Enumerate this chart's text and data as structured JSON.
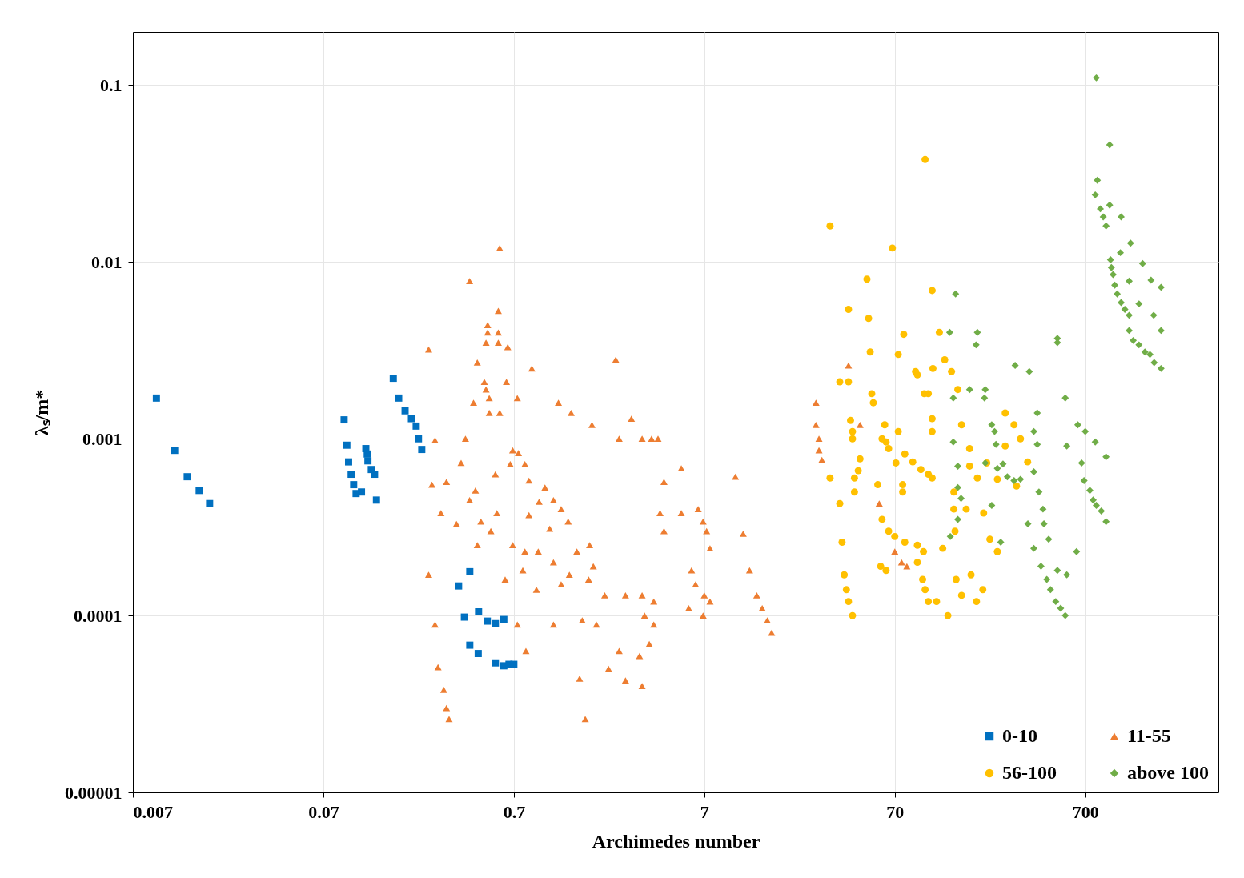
{
  "chart_data": {
    "type": "scatter",
    "xlabel": "Archimedes number",
    "ylabel": "λₛ/m*",
    "log": "xy",
    "xlim": [
      0.007,
      3500
    ],
    "ylim": [
      1e-05,
      0.2
    ],
    "xticks": [
      0.007,
      0.07,
      0.7,
      7,
      70,
      700
    ],
    "yticks": [
      {
        "value": 1e-05,
        "label": "0.00001"
      },
      0.0001,
      0.001,
      0.01,
      0.1
    ],
    "grid": true,
    "legend": "bottom right",
    "series": [
      {
        "name": "0-10",
        "color": "#0070c0",
        "marker": "square",
        "x": [
          0.0093,
          0.0116,
          0.0135,
          0.0156,
          0.0177,
          0.09,
          0.093,
          0.095,
          0.098,
          0.101,
          0.104,
          0.111,
          0.117,
          0.119,
          0.12,
          0.125,
          0.13,
          0.133,
          0.163,
          0.174,
          0.188,
          0.203,
          0.215,
          0.221,
          0.23,
          0.359,
          0.411,
          0.385,
          0.457,
          0.411,
          0.455,
          0.508,
          0.56,
          0.62,
          0.56,
          0.62,
          0.66,
          0.7
        ],
        "values": [
          0.0017,
          0.00086,
          0.00061,
          0.00051,
          0.00043,
          0.00128,
          0.00092,
          0.00074,
          0.00063,
          0.00055,
          0.00049,
          0.0005,
          0.00088,
          0.00082,
          0.00075,
          0.00067,
          0.00063,
          0.00045,
          0.0022,
          0.0017,
          0.00144,
          0.0013,
          0.00118,
          0.001,
          0.00087,
          0.000147,
          0.000177,
          9.8e-05,
          0.000105,
          6.8e-05,
          6.1e-05,
          9.3e-05,
          9e-05,
          9.5e-05,
          5.4e-05,
          5.2e-05,
          5.3e-05,
          5.3e-05
        ]
      },
      {
        "name": "11-55",
        "color": "#ed7d31",
        "marker": "triangle",
        "x": [
          0.59,
          0.41,
          0.25,
          0.58,
          0.51,
          0.51,
          0.58,
          0.5,
          0.58,
          0.65,
          0.45,
          0.87,
          0.49,
          0.64,
          0.5,
          0.52,
          0.73,
          0.43,
          0.52,
          0.59,
          1.2,
          1.4,
          2.4,
          2.9,
          2.5,
          1.8,
          3.3,
          3.7,
          4.0,
          0.27,
          0.37,
          0.31,
          0.26,
          0.44,
          0.56,
          0.67,
          0.69,
          0.74,
          0.8,
          0.84,
          1.02,
          0.95,
          1.13,
          1.24,
          1.35,
          1.08,
          0.84,
          0.57,
          0.47,
          0.53,
          0.45,
          0.69,
          0.8,
          0.94,
          1.13,
          1.5,
          1.75,
          1.83,
          1.37,
          1.73,
          1.24,
          0.78,
          0.63,
          0.92,
          2.1,
          2.7,
          3.3,
          3.8,
          3.4,
          3.8,
          3.6,
          3.2,
          2.5,
          2.2,
          2.7,
          3.3,
          1.9,
          1.6,
          1.13,
          0.81,
          0.73,
          1.55,
          1.66,
          0.27,
          0.28,
          0.3,
          0.31,
          0.32,
          0.25,
          0.29,
          0.39,
          0.41,
          0.35,
          4.1,
          4.3,
          5.3,
          4.3,
          5.3,
          6.5,
          6.9,
          7.2,
          7.5,
          6.0,
          6.3,
          7.0,
          7.5,
          6.9,
          5.8,
          10.2,
          11.2,
          12.1,
          13.2,
          14.1,
          15,
          15.8,
          27,
          27,
          28,
          28,
          29,
          40,
          46,
          58,
          70,
          76,
          81
        ],
        "values": [
          0.012,
          0.0078,
          0.0032,
          0.0053,
          0.0044,
          0.004,
          0.004,
          0.0035,
          0.0035,
          0.0033,
          0.0027,
          0.0025,
          0.0021,
          0.0021,
          0.0019,
          0.0017,
          0.0017,
          0.0016,
          0.0014,
          0.0014,
          0.0016,
          0.0014,
          0.0028,
          0.0013,
          0.001,
          0.0012,
          0.001,
          0.001,
          0.001,
          0.00098,
          0.00073,
          0.00057,
          0.00055,
          0.00051,
          0.00063,
          0.00072,
          0.00086,
          0.00083,
          0.00072,
          0.00058,
          0.00053,
          0.00044,
          0.00045,
          0.0004,
          0.00034,
          0.00031,
          0.00037,
          0.00038,
          0.00034,
          0.0003,
          0.00025,
          0.00025,
          0.00023,
          0.00023,
          0.0002,
          0.00023,
          0.00025,
          0.00019,
          0.00017,
          0.00016,
          0.00015,
          0.00018,
          0.00016,
          0.00014,
          0.00013,
          0.00013,
          0.00013,
          0.00012,
          0.0001,
          8.9e-05,
          6.9e-05,
          5.9e-05,
          6.3e-05,
          5e-05,
          4.3e-05,
          4e-05,
          8.9e-05,
          9.4e-05,
          8.9e-05,
          6.3e-05,
          8.9e-05,
          4.4e-05,
          2.6e-05,
          8.9e-05,
          5.1e-05,
          3.8e-05,
          3e-05,
          2.6e-05,
          0.00017,
          0.00038,
          0.001,
          0.00045,
          0.00033,
          0.00038,
          0.0003,
          0.00068,
          0.00057,
          0.00038,
          0.0004,
          0.00034,
          0.0003,
          0.00024,
          0.00018,
          0.00015,
          0.00013,
          0.00012,
          0.0001,
          0.00011,
          0.00061,
          0.00029,
          0.00018,
          0.00013,
          0.00011,
          9.4e-05,
          8e-05,
          0.0016,
          0.0012,
          0.001,
          0.00086,
          0.00076,
          0.0026,
          0.0012,
          0.00043,
          0.00023,
          0.0002,
          0.00019
        ]
      },
      {
        "name": "56-100",
        "color": "#ffc000",
        "marker": "circle",
        "x": [
          101,
          32,
          68,
          50,
          40,
          51,
          110,
          120,
          78,
          52,
          73,
          36,
          40,
          90,
          92,
          111,
          128,
          139,
          100,
          105,
          53,
          54,
          41,
          62,
          73,
          110,
          110,
          42,
          42,
          60,
          63,
          65,
          79,
          87,
          96,
          105,
          110,
          71,
          77,
          77,
          32,
          45,
          36,
          37,
          38,
          39,
          40,
          42,
          46,
          43,
          43,
          57,
          60,
          65,
          70,
          79,
          92,
          99,
          63,
          59,
          92,
          98,
          101,
          105,
          116,
          133,
          125,
          145,
          166,
          143,
          143,
          190,
          173,
          213,
          242,
          266,
          296,
          320,
          349,
          305,
          150,
          157,
          173,
          147,
          176,
          203,
          188,
          157,
          221,
          242,
          205,
          266
        ],
        "values": [
          0.038,
          0.016,
          0.012,
          0.008,
          0.0054,
          0.0048,
          0.0069,
          0.004,
          0.0039,
          0.0031,
          0.003,
          0.0021,
          0.0021,
          0.0024,
          0.0023,
          0.0025,
          0.0028,
          0.0024,
          0.0018,
          0.0018,
          0.0018,
          0.0016,
          0.00127,
          0.0012,
          0.0011,
          0.0013,
          0.0011,
          0.0011,
          0.001,
          0.001,
          0.00096,
          0.00088,
          0.00082,
          0.00074,
          0.00067,
          0.00063,
          0.0006,
          0.00073,
          0.00055,
          0.0005,
          0.0006,
          0.00066,
          0.00043,
          0.00026,
          0.00017,
          0.00014,
          0.00012,
          0.0001,
          0.00077,
          0.0006,
          0.0005,
          0.00055,
          0.00035,
          0.0003,
          0.00028,
          0.00026,
          0.00025,
          0.00023,
          0.00018,
          0.00019,
          0.0002,
          0.00016,
          0.00014,
          0.00012,
          0.00012,
          0.0001,
          0.00024,
          0.0003,
          0.0004,
          0.0004,
          0.0005,
          0.0006,
          0.0007,
          0.00073,
          0.00059,
          0.0014,
          0.0012,
          0.001,
          0.00074,
          0.00054,
          0.0019,
          0.0012,
          0.00088,
          0.00016,
          0.00017,
          0.00014,
          0.00012,
          0.00013,
          0.00027,
          0.00023,
          0.00038,
          0.00091
        ]
      },
      {
        "name": "above 100",
        "color": "#70ad47",
        "marker": "diamond",
        "x": [
          800,
          940,
          810,
          790,
          840,
          940,
          1080,
          870,
          900,
          1210,
          1070,
          1400,
          950,
          960,
          980,
          1000,
          1030,
          1080,
          1130,
          1190,
          1550,
          1750,
          1190,
          1340,
          1600,
          1750,
          1190,
          1250,
          1340,
          1440,
          1530,
          1610,
          1750,
          146,
          136,
          190,
          187,
          500,
          500,
          142,
          173,
          209,
          207,
          300,
          356,
          392,
          550,
          142,
          150,
          150,
          156,
          150,
          137,
          226,
          234,
          238,
          259,
          273,
          296,
          320,
          209,
          242,
          376,
          392,
          226,
          252,
          376,
          400,
          420,
          425,
          450,
          350,
          376,
          410,
          440,
          460,
          490,
          520,
          550,
          500,
          560,
          630,
          640,
          560,
          670,
          690,
          740,
          770,
          800,
          850,
          900,
          700,
          790,
          900
        ],
        "values": [
          0.11,
          0.046,
          0.029,
          0.024,
          0.02,
          0.021,
          0.018,
          0.018,
          0.016,
          0.0128,
          0.0113,
          0.0098,
          0.0103,
          0.0093,
          0.0085,
          0.0074,
          0.0066,
          0.0059,
          0.0054,
          0.005,
          0.0079,
          0.0072,
          0.0078,
          0.0058,
          0.005,
          0.0041,
          0.0041,
          0.0036,
          0.0034,
          0.0031,
          0.003,
          0.0027,
          0.0025,
          0.0066,
          0.004,
          0.004,
          0.0034,
          0.0037,
          0.0035,
          0.0017,
          0.0019,
          0.0019,
          0.0017,
          0.0026,
          0.0024,
          0.0014,
          0.0017,
          0.00096,
          0.0007,
          0.00053,
          0.00046,
          0.00035,
          0.00028,
          0.0012,
          0.0011,
          0.00093,
          0.00072,
          0.00061,
          0.00058,
          0.00059,
          0.00073,
          0.00068,
          0.0011,
          0.00093,
          0.00042,
          0.00026,
          0.00065,
          0.0005,
          0.0004,
          0.00033,
          0.00027,
          0.00033,
          0.00024,
          0.00019,
          0.00016,
          0.00014,
          0.00012,
          0.00011,
          0.0001,
          0.00018,
          0.00017,
          0.00023,
          0.0012,
          0.00091,
          0.00073,
          0.00058,
          0.00051,
          0.00045,
          0.00042,
          0.00039,
          0.00034,
          0.0011,
          0.00096,
          0.00079
        ]
      }
    ]
  }
}
